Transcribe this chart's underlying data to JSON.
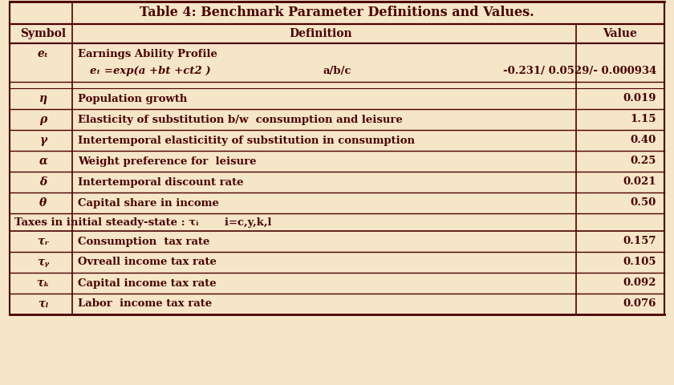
{
  "title": "Table 4: Benchmark Parameter Definitions and Values.",
  "title_color": "#4B0000",
  "bg_color": "#F5E6C8",
  "header_bg": "#D4A96A",
  "border_color": "#4B0000",
  "text_color": "#4B0000",
  "col_headers": [
    "Symbol",
    "Definition",
    "Value"
  ],
  "rows": [
    {
      "type": "data_double",
      "symbol": "eₜ",
      "line1": "Earnings Ability Profile",
      "line2": "eₜ =exp(a +bt +ct2 )",
      "mid": "a/b/c",
      "value": "-0.231/ 0.0529/- 0.000934",
      "bold_symbol": true,
      "bold_value": true
    },
    {
      "type": "spacer"
    },
    {
      "type": "data",
      "symbol": "η",
      "definition": "Population growth",
      "value": "0.019"
    },
    {
      "type": "data",
      "symbol": "ρ",
      "definition": "Elasticity of substitution b/w  consumption and leisure",
      "value": "1.15"
    },
    {
      "type": "data",
      "symbol": "γ",
      "definition": "Intertemporal elasticitity of substitution in consumption",
      "value": "0.40"
    },
    {
      "type": "data",
      "symbol": "α",
      "definition": "Weight preference for  leisure",
      "value": "0.25"
    },
    {
      "type": "data",
      "symbol": "δ",
      "definition": "Intertemporal discount rate",
      "value": "0.021"
    },
    {
      "type": "data",
      "symbol": "θ",
      "definition": "Capital share in income",
      "value": "0.50"
    },
    {
      "type": "section_header",
      "text": "Taxes in initial steady-state : τᵢ       i=c,y,k,l"
    },
    {
      "type": "data",
      "symbol": "τᵣ",
      "definition": "Consumption  tax rate",
      "value": "0.157"
    },
    {
      "type": "data",
      "symbol": "τᵧ",
      "definition": "Ovreall income tax rate",
      "value": "0.105"
    },
    {
      "type": "data",
      "symbol": "τₖ",
      "definition": "Capital income tax rate",
      "value": "0.092"
    },
    {
      "type": "data",
      "symbol": "τₗ",
      "definition": "Labor  income tax rate",
      "value": "0.076"
    }
  ]
}
